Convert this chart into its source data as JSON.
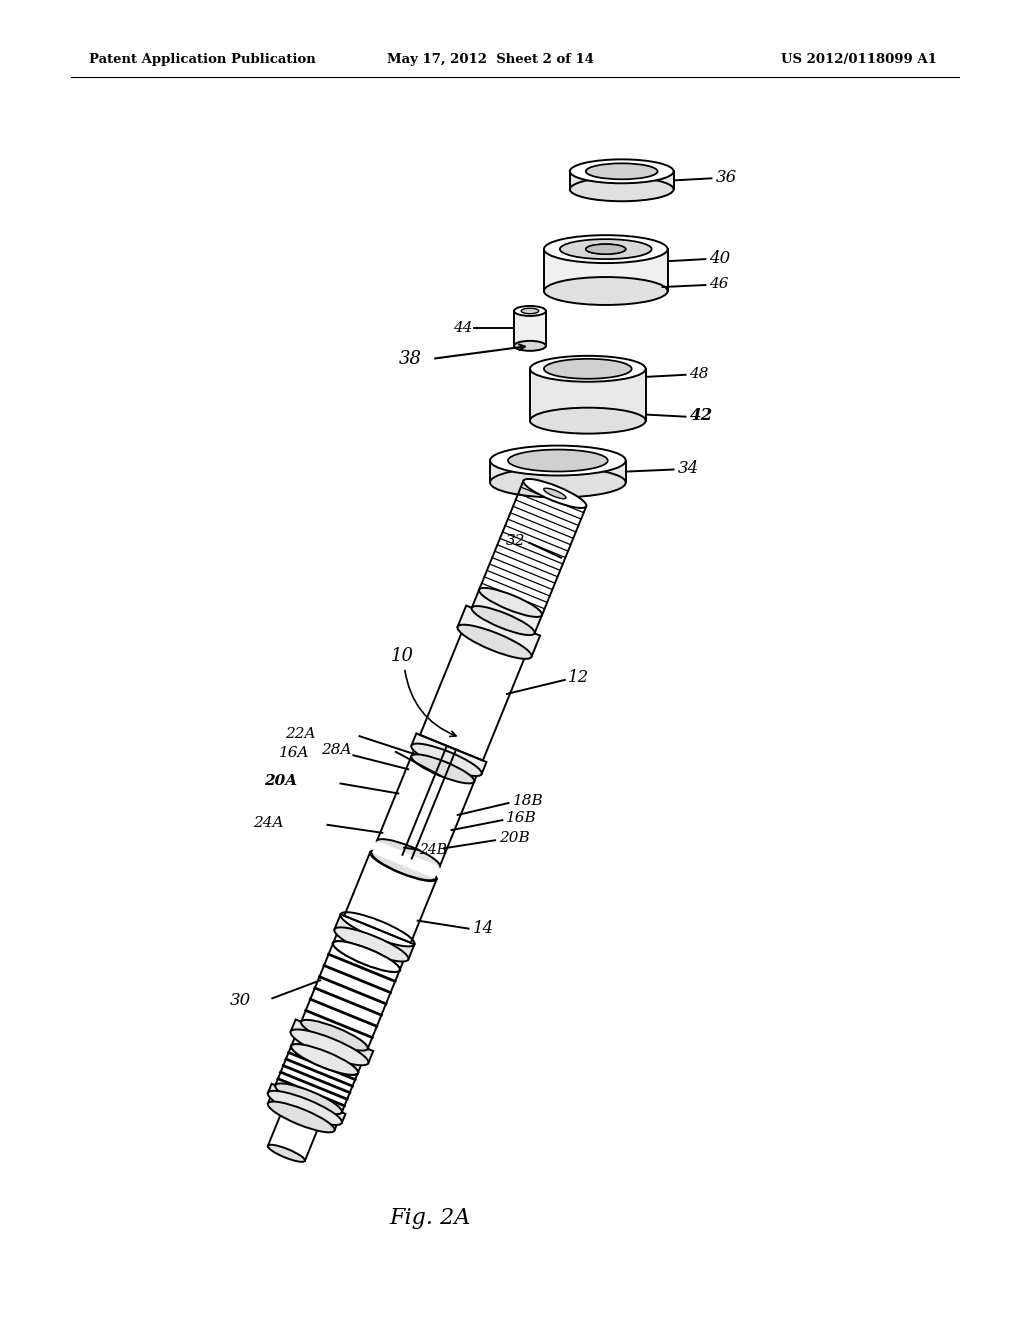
{
  "background_color": "#ffffff",
  "header_left": "Patent Application Publication",
  "header_center": "May 17, 2012  Sheet 2 of 14",
  "header_right": "US 2012/0118099 A1",
  "figure_label": "Fig. 2A",
  "text_color": "#000000",
  "lw": 1.4
}
